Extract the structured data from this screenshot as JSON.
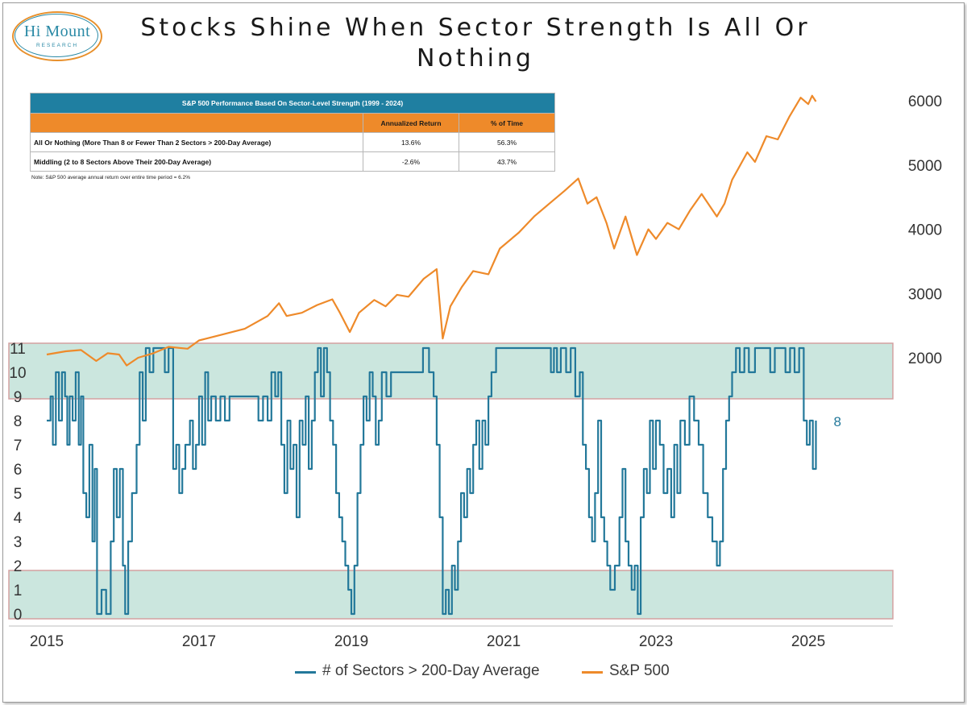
{
  "logo": {
    "name": "Hi Mount",
    "sub": "RESEARCH"
  },
  "title": "Stocks Shine When Sector Strength Is All Or Nothing",
  "table": {
    "heading": "S&P 500 Performance Based On Sector-Level Strength (1999 - 2024)",
    "col1": "Annualized Return",
    "col2": "% of Time",
    "rows": [
      {
        "label": "All Or Nothing (More Than 8 or Fewer Than 2 Sectors > 200-Day Average)",
        "ret": "13.6%",
        "time": "56.3%"
      },
      {
        "label": "Middling (2 to 8 Sectors Above Their 200-Day Average)",
        "ret": "-2.6%",
        "time": "43.7%"
      }
    ],
    "note": "Note: S&P 500 average annual return over entire time period = 6.2%"
  },
  "colors": {
    "sp500": "#ee8a2a",
    "sectors": "#23789a",
    "band_fill": "#cbe6de",
    "band_border": "#d4a0a0",
    "header": "#1f7fa1"
  },
  "chart_data": {
    "type": "line",
    "x_ticks": [
      "2015",
      "2017",
      "2019",
      "2021",
      "2023",
      "2025"
    ],
    "x_range": [
      2015.0,
      2026.1
    ],
    "axes": {
      "right": {
        "ticks": [
          "2000",
          "3000",
          "4000",
          "5000",
          "6000"
        ],
        "range": [
          2000,
          6000
        ]
      },
      "left": {
        "ticks": [
          "0",
          "1",
          "2",
          "3",
          "4",
          "5",
          "6",
          "7",
          "8",
          "9",
          "10",
          "11"
        ],
        "range": [
          0,
          11
        ]
      }
    },
    "bands": [
      {
        "label": "upper",
        "from": 8.9,
        "to": 11.2
      },
      {
        "label": "lower",
        "from": -0.2,
        "to": 1.8
      }
    ],
    "last_label": "8",
    "series": [
      {
        "name": "# of Sectors > 200-Day Average",
        "axis": "left",
        "color": "#23789a",
        "points": [
          [
            2015.0,
            8
          ],
          [
            2015.05,
            9
          ],
          [
            2015.08,
            7
          ],
          [
            2015.12,
            10
          ],
          [
            2015.16,
            8
          ],
          [
            2015.2,
            10
          ],
          [
            2015.24,
            9
          ],
          [
            2015.27,
            7
          ],
          [
            2015.3,
            9
          ],
          [
            2015.34,
            8
          ],
          [
            2015.38,
            10
          ],
          [
            2015.42,
            7
          ],
          [
            2015.45,
            9
          ],
          [
            2015.48,
            5
          ],
          [
            2015.52,
            4
          ],
          [
            2015.56,
            7
          ],
          [
            2015.6,
            3
          ],
          [
            2015.63,
            6
          ],
          [
            2015.66,
            0
          ],
          [
            2015.72,
            1
          ],
          [
            2015.78,
            0
          ],
          [
            2015.84,
            3
          ],
          [
            2015.88,
            6
          ],
          [
            2015.92,
            4
          ],
          [
            2015.96,
            6
          ],
          [
            2016.0,
            2
          ],
          [
            2016.03,
            0
          ],
          [
            2016.07,
            3
          ],
          [
            2016.12,
            5
          ],
          [
            2016.18,
            7
          ],
          [
            2016.22,
            10
          ],
          [
            2016.26,
            8
          ],
          [
            2016.3,
            11
          ],
          [
            2016.35,
            10
          ],
          [
            2016.4,
            11
          ],
          [
            2016.48,
            11
          ],
          [
            2016.55,
            10
          ],
          [
            2016.6,
            11
          ],
          [
            2016.66,
            6
          ],
          [
            2016.7,
            7
          ],
          [
            2016.74,
            5
          ],
          [
            2016.78,
            6
          ],
          [
            2016.82,
            7
          ],
          [
            2016.88,
            8
          ],
          [
            2016.92,
            6
          ],
          [
            2016.96,
            7
          ],
          [
            2017.0,
            9
          ],
          [
            2017.04,
            7
          ],
          [
            2017.08,
            10
          ],
          [
            2017.12,
            8
          ],
          [
            2017.16,
            9
          ],
          [
            2017.22,
            8
          ],
          [
            2017.28,
            9
          ],
          [
            2017.34,
            8
          ],
          [
            2017.4,
            9
          ],
          [
            2017.5,
            9
          ],
          [
            2017.6,
            9
          ],
          [
            2017.7,
            9
          ],
          [
            2017.78,
            8
          ],
          [
            2017.84,
            9
          ],
          [
            2017.9,
            8
          ],
          [
            2017.95,
            10
          ],
          [
            2018.0,
            9
          ],
          [
            2018.04,
            10
          ],
          [
            2018.08,
            7
          ],
          [
            2018.12,
            5
          ],
          [
            2018.16,
            8
          ],
          [
            2018.2,
            6
          ],
          [
            2018.24,
            7
          ],
          [
            2018.28,
            4
          ],
          [
            2018.32,
            8
          ],
          [
            2018.36,
            7
          ],
          [
            2018.4,
            9
          ],
          [
            2018.44,
            6
          ],
          [
            2018.48,
            8
          ],
          [
            2018.52,
            10
          ],
          [
            2018.56,
            11
          ],
          [
            2018.6,
            9
          ],
          [
            2018.64,
            11
          ],
          [
            2018.68,
            10
          ],
          [
            2018.72,
            8
          ],
          [
            2018.76,
            7
          ],
          [
            2018.8,
            5
          ],
          [
            2018.84,
            4
          ],
          [
            2018.88,
            3
          ],
          [
            2018.92,
            2
          ],
          [
            2018.96,
            1
          ],
          [
            2019.0,
            0
          ],
          [
            2019.04,
            2
          ],
          [
            2019.08,
            5
          ],
          [
            2019.12,
            7
          ],
          [
            2019.16,
            9
          ],
          [
            2019.2,
            8
          ],
          [
            2019.24,
            10
          ],
          [
            2019.28,
            9
          ],
          [
            2019.32,
            7
          ],
          [
            2019.36,
            8
          ],
          [
            2019.4,
            10
          ],
          [
            2019.46,
            9
          ],
          [
            2019.52,
            10
          ],
          [
            2019.6,
            10
          ],
          [
            2019.7,
            10
          ],
          [
            2019.8,
            10
          ],
          [
            2019.88,
            10
          ],
          [
            2019.94,
            11
          ],
          [
            2020.02,
            10
          ],
          [
            2020.08,
            9
          ],
          [
            2020.12,
            7
          ],
          [
            2020.16,
            4
          ],
          [
            2020.2,
            0
          ],
          [
            2020.24,
            1
          ],
          [
            2020.28,
            0
          ],
          [
            2020.32,
            2
          ],
          [
            2020.36,
            1
          ],
          [
            2020.4,
            3
          ],
          [
            2020.44,
            5
          ],
          [
            2020.48,
            4
          ],
          [
            2020.52,
            6
          ],
          [
            2020.56,
            5
          ],
          [
            2020.6,
            7
          ],
          [
            2020.64,
            8
          ],
          [
            2020.68,
            6
          ],
          [
            2020.72,
            8
          ],
          [
            2020.76,
            7
          ],
          [
            2020.8,
            9
          ],
          [
            2020.84,
            10
          ],
          [
            2020.9,
            11
          ],
          [
            2021.0,
            11
          ],
          [
            2021.2,
            11
          ],
          [
            2021.4,
            11
          ],
          [
            2021.55,
            11
          ],
          [
            2021.62,
            10
          ],
          [
            2021.66,
            11
          ],
          [
            2021.7,
            10
          ],
          [
            2021.75,
            11
          ],
          [
            2021.82,
            10
          ],
          [
            2021.88,
            11
          ],
          [
            2021.94,
            9
          ],
          [
            2022.0,
            10
          ],
          [
            2022.04,
            7
          ],
          [
            2022.08,
            6
          ],
          [
            2022.12,
            4
          ],
          [
            2022.16,
            3
          ],
          [
            2022.2,
            5
          ],
          [
            2022.24,
            8
          ],
          [
            2022.28,
            4
          ],
          [
            2022.32,
            3
          ],
          [
            2022.36,
            2
          ],
          [
            2022.4,
            1
          ],
          [
            2022.46,
            2
          ],
          [
            2022.52,
            4
          ],
          [
            2022.56,
            6
          ],
          [
            2022.6,
            3
          ],
          [
            2022.64,
            2
          ],
          [
            2022.68,
            1
          ],
          [
            2022.72,
            2
          ],
          [
            2022.76,
            0
          ],
          [
            2022.8,
            4
          ],
          [
            2022.84,
            6
          ],
          [
            2022.88,
            5
          ],
          [
            2022.92,
            8
          ],
          [
            2022.96,
            6
          ],
          [
            2023.0,
            8
          ],
          [
            2023.05,
            7
          ],
          [
            2023.1,
            5
          ],
          [
            2023.15,
            6
          ],
          [
            2023.2,
            4
          ],
          [
            2023.24,
            7
          ],
          [
            2023.28,
            5
          ],
          [
            2023.32,
            8
          ],
          [
            2023.38,
            7
          ],
          [
            2023.44,
            9
          ],
          [
            2023.5,
            8
          ],
          [
            2023.56,
            7
          ],
          [
            2023.62,
            5
          ],
          [
            2023.68,
            4
          ],
          [
            2023.74,
            3
          ],
          [
            2023.8,
            2
          ],
          [
            2023.84,
            3
          ],
          [
            2023.88,
            6
          ],
          [
            2023.92,
            8
          ],
          [
            2023.96,
            9
          ],
          [
            2024.0,
            10
          ],
          [
            2024.05,
            11
          ],
          [
            2024.1,
            10
          ],
          [
            2024.16,
            11
          ],
          [
            2024.22,
            10
          ],
          [
            2024.3,
            11
          ],
          [
            2024.4,
            11
          ],
          [
            2024.5,
            10
          ],
          [
            2024.56,
            11
          ],
          [
            2024.62,
            11
          ],
          [
            2024.7,
            10
          ],
          [
            2024.76,
            11
          ],
          [
            2024.82,
            10
          ],
          [
            2024.88,
            11
          ],
          [
            2024.94,
            8
          ],
          [
            2024.98,
            7
          ],
          [
            2025.02,
            8
          ],
          [
            2025.06,
            6
          ],
          [
            2025.1,
            8
          ]
        ]
      },
      {
        "name": "S&P 500",
        "axis": "right",
        "color": "#ee8a2a",
        "points": [
          [
            2015.0,
            2050
          ],
          [
            2015.25,
            2100
          ],
          [
            2015.45,
            2120
          ],
          [
            2015.65,
            1950
          ],
          [
            2015.8,
            2070
          ],
          [
            2015.95,
            2050
          ],
          [
            2016.05,
            1880
          ],
          [
            2016.2,
            2000
          ],
          [
            2016.4,
            2070
          ],
          [
            2016.6,
            2170
          ],
          [
            2016.85,
            2140
          ],
          [
            2017.0,
            2270
          ],
          [
            2017.3,
            2360
          ],
          [
            2017.6,
            2450
          ],
          [
            2017.9,
            2650
          ],
          [
            2018.05,
            2850
          ],
          [
            2018.15,
            2650
          ],
          [
            2018.35,
            2700
          ],
          [
            2018.55,
            2820
          ],
          [
            2018.75,
            2910
          ],
          [
            2018.85,
            2700
          ],
          [
            2018.98,
            2400
          ],
          [
            2019.1,
            2700
          ],
          [
            2019.3,
            2900
          ],
          [
            2019.45,
            2800
          ],
          [
            2019.6,
            2980
          ],
          [
            2019.75,
            2950
          ],
          [
            2019.95,
            3230
          ],
          [
            2020.12,
            3380
          ],
          [
            2020.2,
            2300
          ],
          [
            2020.3,
            2800
          ],
          [
            2020.45,
            3100
          ],
          [
            2020.6,
            3350
          ],
          [
            2020.8,
            3300
          ],
          [
            2020.95,
            3700
          ],
          [
            2021.2,
            3950
          ],
          [
            2021.4,
            4200
          ],
          [
            2021.6,
            4400
          ],
          [
            2021.8,
            4600
          ],
          [
            2021.98,
            4790
          ],
          [
            2022.1,
            4400
          ],
          [
            2022.22,
            4500
          ],
          [
            2022.35,
            4100
          ],
          [
            2022.45,
            3700
          ],
          [
            2022.6,
            4200
          ],
          [
            2022.75,
            3600
          ],
          [
            2022.9,
            4000
          ],
          [
            2023.0,
            3850
          ],
          [
            2023.15,
            4100
          ],
          [
            2023.3,
            4000
          ],
          [
            2023.45,
            4300
          ],
          [
            2023.6,
            4550
          ],
          [
            2023.8,
            4200
          ],
          [
            2023.9,
            4400
          ],
          [
            2024.0,
            4770
          ],
          [
            2024.2,
            5200
          ],
          [
            2024.3,
            5050
          ],
          [
            2024.45,
            5450
          ],
          [
            2024.6,
            5400
          ],
          [
            2024.75,
            5750
          ],
          [
            2024.9,
            6050
          ],
          [
            2025.0,
            5950
          ],
          [
            2025.05,
            6080
          ],
          [
            2025.1,
            5990
          ]
        ]
      }
    ]
  },
  "legend": {
    "sectors": "# of Sectors > 200-Day Average",
    "sp500": "S&P 500"
  }
}
